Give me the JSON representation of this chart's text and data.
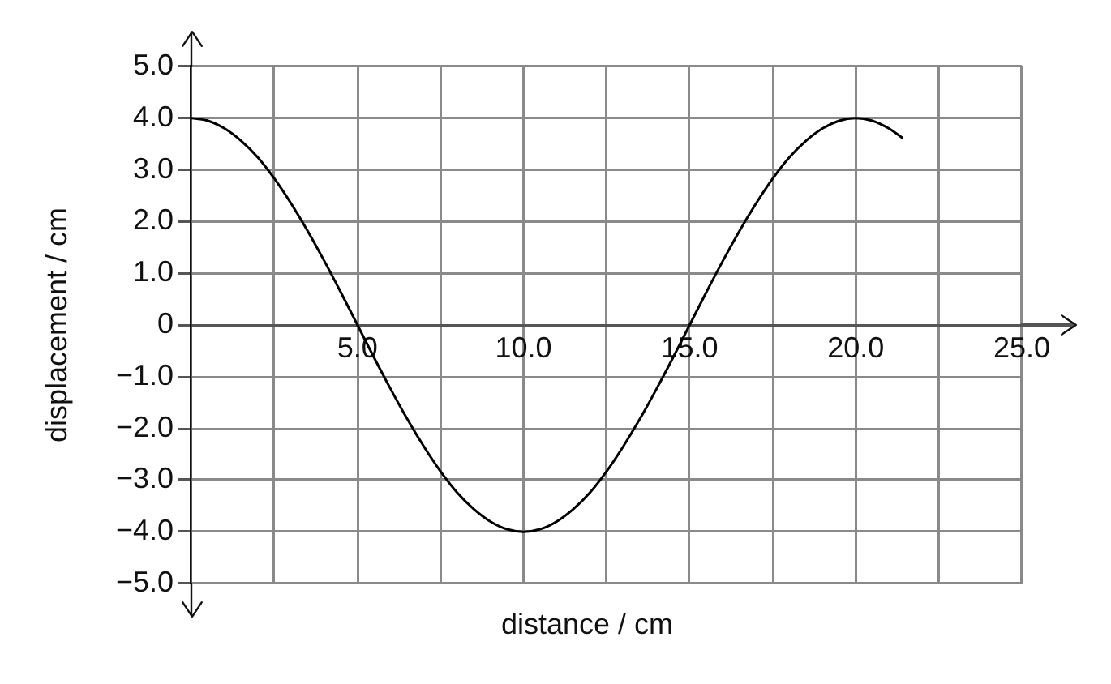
{
  "chart_data": {
    "type": "line",
    "xlabel": "distance / cm",
    "ylabel": "displacement / cm",
    "x": [
      0,
      0.5,
      1,
      1.5,
      2,
      2.5,
      3,
      3.5,
      4,
      4.5,
      5,
      5.5,
      6,
      6.5,
      7,
      7.5,
      8,
      8.5,
      9,
      9.5,
      10,
      10.5,
      11,
      11.5,
      12,
      12.5,
      13,
      13.5,
      14,
      14.5,
      15,
      15.5,
      16,
      16.5,
      17,
      17.5,
      18,
      18.5,
      19,
      19.5,
      20,
      20.5,
      21,
      21.4
    ],
    "series": [
      {
        "color": "#000000",
        "values": [
          4,
          3.95,
          3.8,
          3.56,
          3.24,
          2.83,
          2.35,
          1.82,
          1.24,
          0.63,
          0,
          -0.63,
          -1.24,
          -1.82,
          -2.35,
          -2.83,
          -3.24,
          -3.56,
          -3.8,
          -3.95,
          -4,
          -3.95,
          -3.8,
          -3.56,
          -3.24,
          -2.83,
          -2.35,
          -1.82,
          -1.24,
          -0.63,
          0,
          0.63,
          1.24,
          1.82,
          2.35,
          2.83,
          3.24,
          3.56,
          3.8,
          3.95,
          4,
          3.95,
          3.8,
          3.62
        ]
      }
    ],
    "xlim": [
      0,
      25
    ],
    "ylim": [
      -5,
      5
    ],
    "xticks": [
      {
        "value": 0,
        "label": null
      },
      {
        "value": 2.5,
        "label": null
      },
      {
        "value": 5,
        "label": "5.0"
      },
      {
        "value": 7.5,
        "label": null
      },
      {
        "value": 10,
        "label": "10.0"
      },
      {
        "value": 12.5,
        "label": null
      },
      {
        "value": 15,
        "label": "15.0"
      },
      {
        "value": 17.5,
        "label": null
      },
      {
        "value": 20,
        "label": "20.0"
      },
      {
        "value": 22.5,
        "label": null
      },
      {
        "value": 25,
        "label": "25.0"
      }
    ],
    "yticks": [
      {
        "value": -5,
        "label": "−5.0"
      },
      {
        "value": -4,
        "label": "−4.0"
      },
      {
        "value": -3,
        "label": "−3.0"
      },
      {
        "value": -2,
        "label": "−2.0"
      },
      {
        "value": -1,
        "label": "−1.0"
      },
      0,
      {
        "value": 1,
        "label": "1.0"
      },
      {
        "value": 2,
        "label": "2.0"
      },
      {
        "value": 3,
        "label": "3.0"
      },
      {
        "value": 4,
        "label": "4.0"
      },
      {
        "value": 5,
        "label": "5.0"
      }
    ],
    "grid": true,
    "legend": false,
    "marker": "none",
    "line_style": "solid"
  }
}
